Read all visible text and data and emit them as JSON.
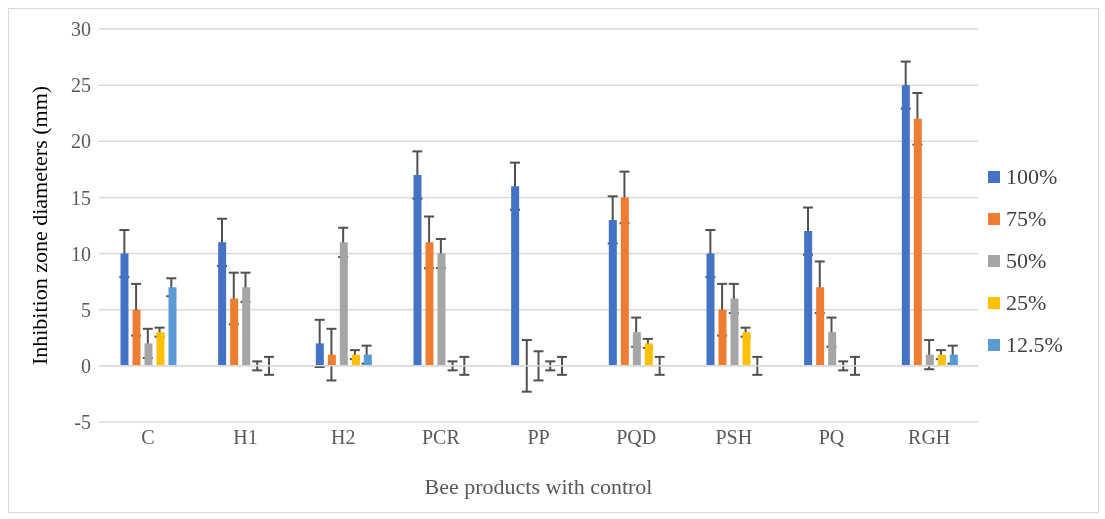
{
  "chart_data": {
    "type": "bar",
    "xlabel": "Bee products with control",
    "ylabel": "Inhibition zone diameters (mm)",
    "categories": [
      "C",
      "H1",
      "H2",
      "PCR",
      "PP",
      "PQD",
      "PSH",
      "PQ",
      "RGH"
    ],
    "series": [
      {
        "name": "100%",
        "color": "#4472c4",
        "values": [
          10,
          11,
          2,
          17,
          16,
          13,
          10,
          12,
          25
        ],
        "errors": [
          2.1,
          2.1,
          2.1,
          2.1,
          2.1,
          2.1,
          2.1,
          2.1,
          2.1
        ]
      },
      {
        "name": "75%",
        "color": "#ed7d31",
        "values": [
          5,
          6,
          1,
          11,
          0,
          15,
          5,
          7,
          22
        ],
        "errors": [
          2.3,
          2.3,
          2.3,
          2.3,
          2.3,
          2.3,
          2.3,
          2.3,
          2.3
        ]
      },
      {
        "name": "50%",
        "color": "#a5a5a5",
        "values": [
          2,
          7,
          11,
          10,
          0,
          3,
          6,
          3,
          1
        ],
        "errors": [
          1.3,
          1.3,
          1.3,
          1.3,
          1.3,
          1.3,
          1.3,
          1.3,
          1.3
        ]
      },
      {
        "name": "25%",
        "color": "#ffc000",
        "values": [
          3,
          0,
          1,
          0,
          0,
          2,
          3,
          0,
          1
        ],
        "errors": [
          0.4,
          0.4,
          0.4,
          0.4,
          0.4,
          0.4,
          0.4,
          0.4,
          0.4
        ]
      },
      {
        "name": "12.5%",
        "color": "#5b9bd5",
        "values": [
          7,
          0,
          1,
          0,
          0,
          0,
          0,
          0,
          1
        ],
        "errors": [
          0.8,
          0.8,
          0.8,
          0.8,
          0.8,
          0.8,
          0.8,
          0.8,
          0.8
        ]
      }
    ],
    "ylim": [
      -5,
      30
    ],
    "yticks": [
      -5,
      0,
      5,
      10,
      15,
      20,
      25,
      30
    ],
    "grid": "y",
    "legend": "right"
  }
}
